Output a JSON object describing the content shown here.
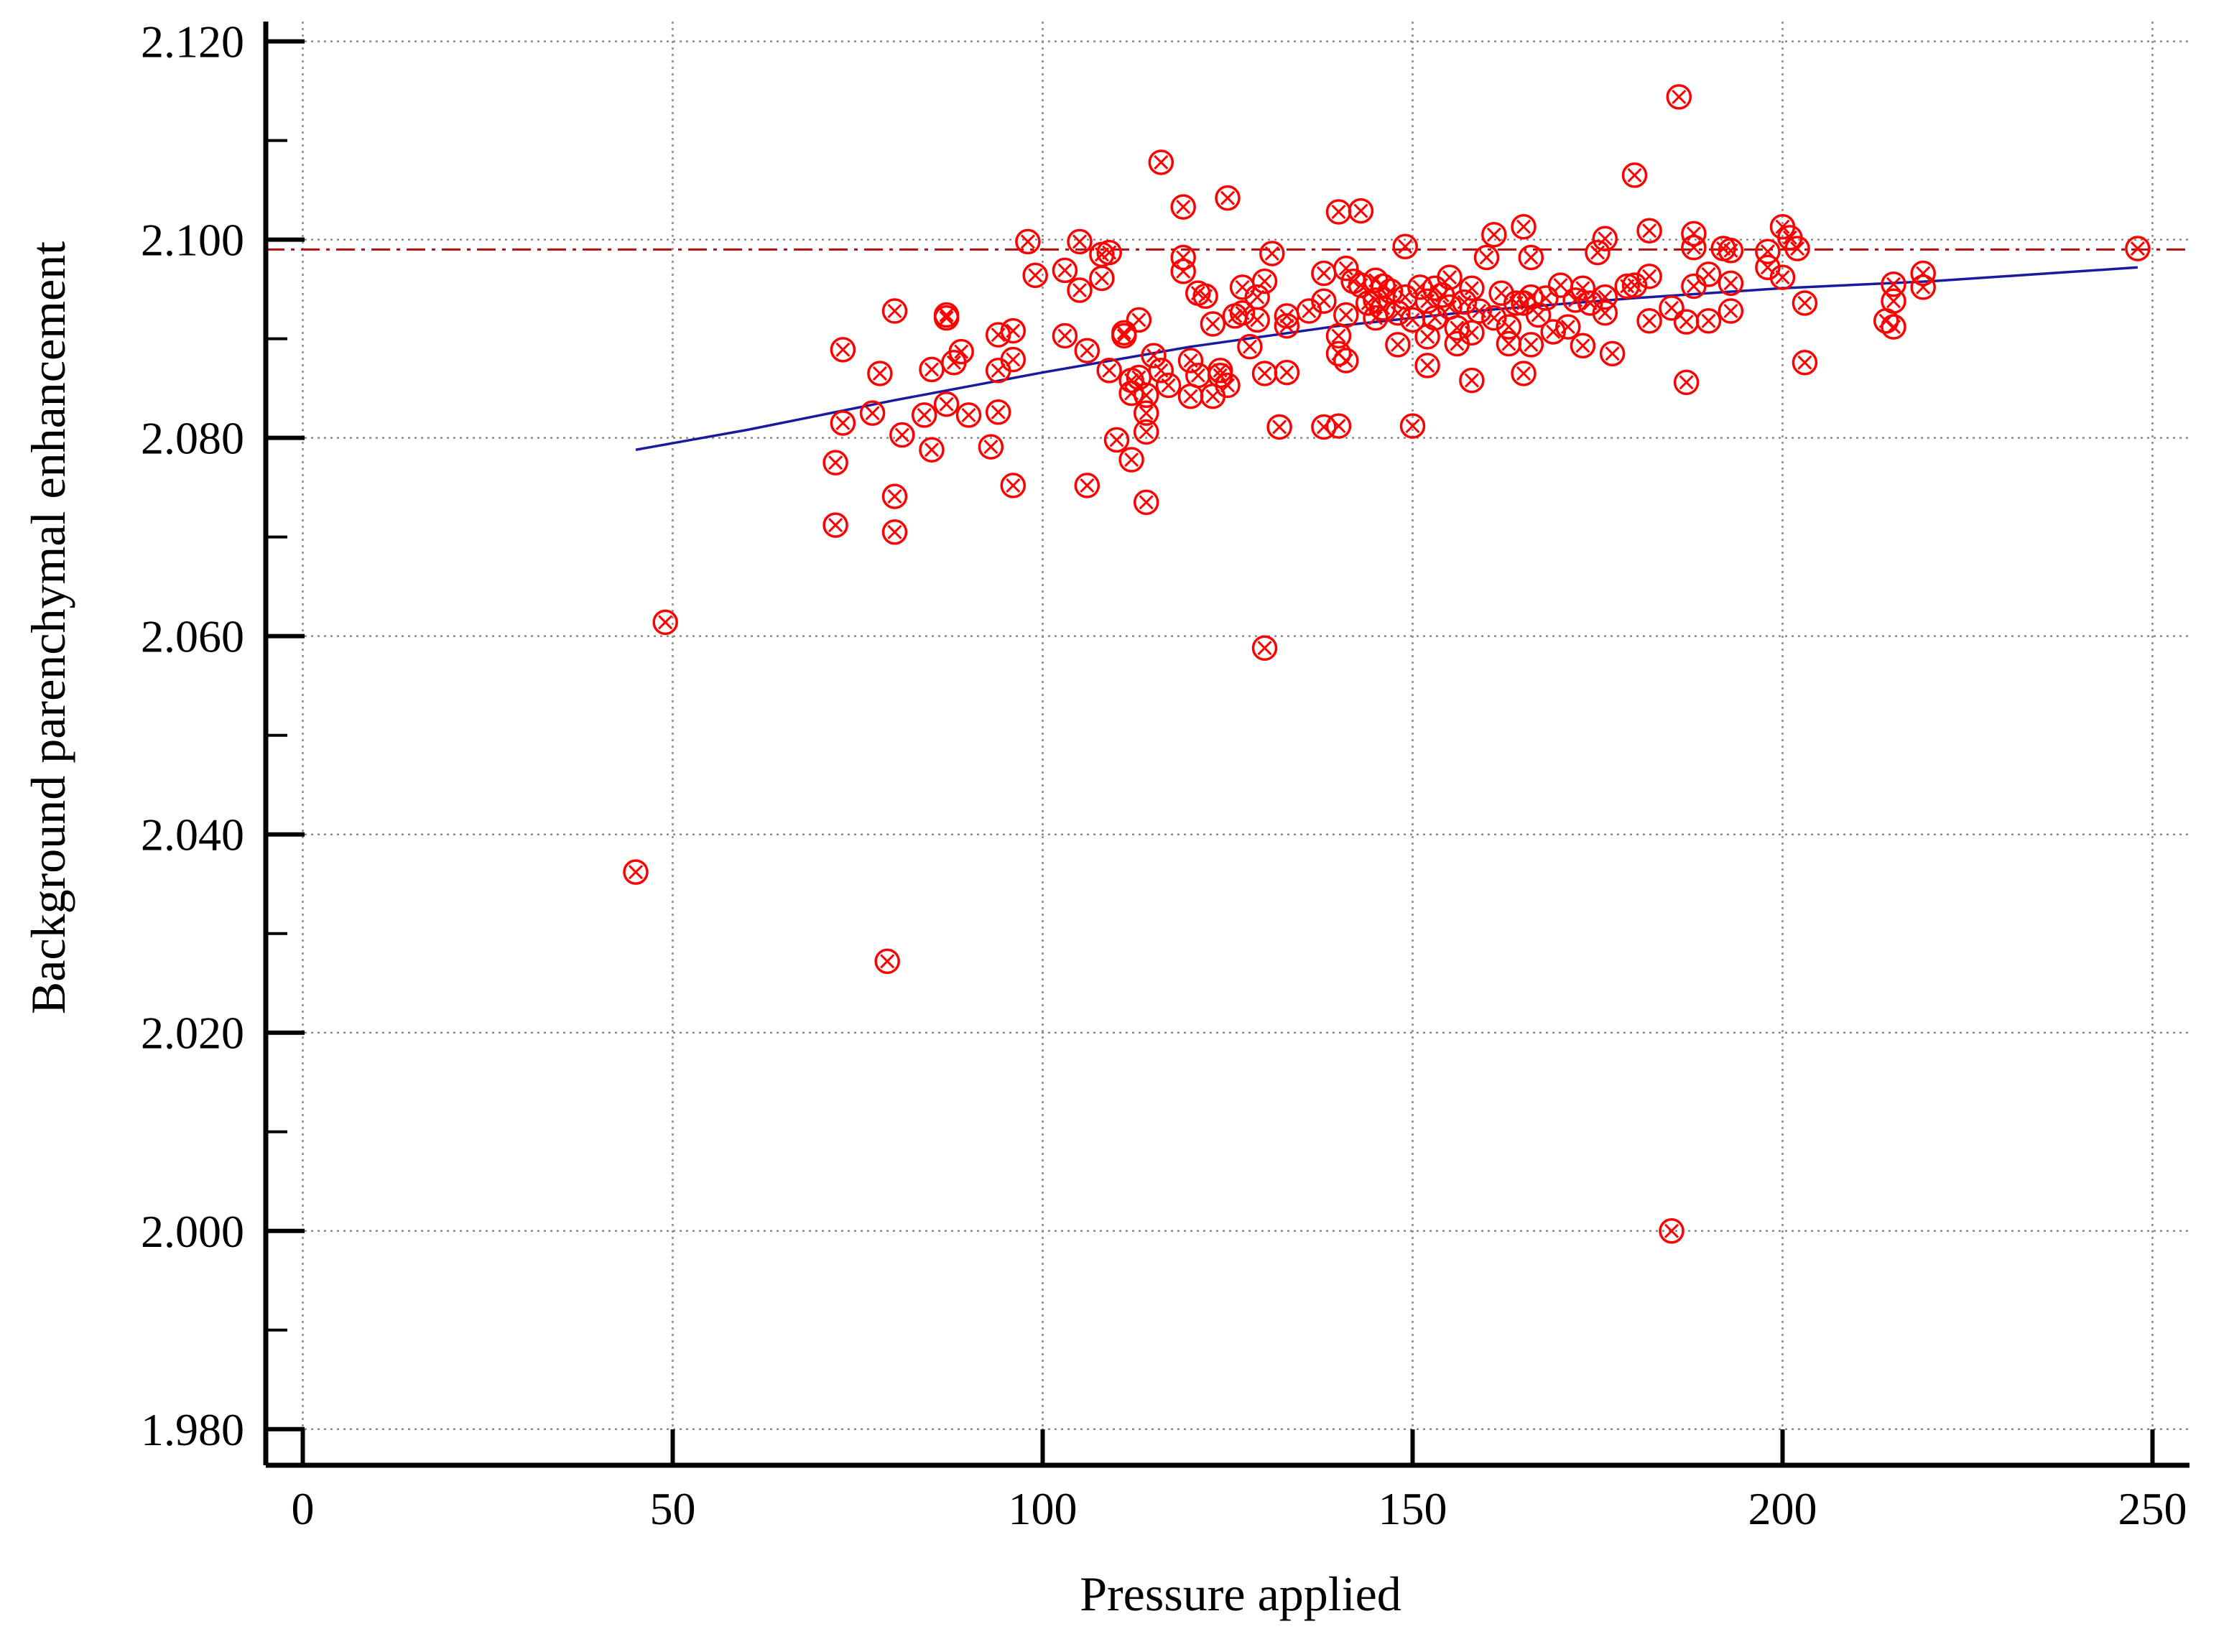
{
  "chart_data": {
    "type": "scatter",
    "title": "",
    "xlabel": "Pressure applied",
    "ylabel": "Background parenchymal enhancement",
    "xlim": [
      -5,
      255
    ],
    "ylim": [
      1.976,
      2.122
    ],
    "x_ticks": [
      {
        "value": 0,
        "label": "0"
      },
      {
        "value": 50,
        "label": "50"
      },
      {
        "value": 100,
        "label": "100"
      },
      {
        "value": 150,
        "label": "150"
      },
      {
        "value": 200,
        "label": "200"
      },
      {
        "value": 250,
        "label": "250"
      }
    ],
    "y_ticks": [
      {
        "value": 1.98,
        "label": "1.980"
      },
      {
        "value": 2.0,
        "label": "2.000"
      },
      {
        "value": 2.02,
        "label": "2.020"
      },
      {
        "value": 2.04,
        "label": "2.040"
      },
      {
        "value": 2.06,
        "label": "2.060"
      },
      {
        "value": 2.08,
        "label": "2.080"
      },
      {
        "value": 2.1,
        "label": "2.100"
      },
      {
        "value": 2.12,
        "label": "2.120"
      }
    ],
    "y_minor_ticks": [
      1.99,
      2.01,
      2.03,
      2.05,
      2.07,
      2.09,
      2.11
    ],
    "grid": true,
    "marker_color": "#ff0000",
    "trend_color": "#1a1aa0",
    "reference_color": "#b01010",
    "reference_line": {
      "y": 2.099,
      "style": "dash-dot"
    },
    "trend_line": {
      "x": [
        45,
        60,
        80,
        100,
        120,
        140,
        160,
        180,
        200,
        220,
        248
      ],
      "y": [
        2.0788,
        2.0808,
        2.0838,
        2.0866,
        2.0892,
        2.0913,
        2.0929,
        2.0941,
        2.0951,
        2.0958,
        2.0972
      ]
    },
    "points": [
      [
        45,
        2.0362
      ],
      [
        49,
        2.0614
      ],
      [
        72,
        2.0712
      ],
      [
        72,
        2.0775
      ],
      [
        73,
        2.0889
      ],
      [
        73,
        2.0815
      ],
      [
        77,
        2.0825
      ],
      [
        78,
        2.0865
      ],
      [
        79,
        2.0272
      ],
      [
        80,
        2.0705
      ],
      [
        80,
        2.0741
      ],
      [
        80,
        2.0928
      ],
      [
        81,
        2.0803
      ],
      [
        84,
        2.0823
      ],
      [
        85,
        2.0788
      ],
      [
        85,
        2.0869
      ],
      [
        87,
        2.0924
      ],
      [
        87,
        2.0921
      ],
      [
        87,
        2.0834
      ],
      [
        88,
        2.0876
      ],
      [
        89,
        2.0887
      ],
      [
        90,
        2.0823
      ],
      [
        93,
        2.0791
      ],
      [
        94,
        2.0904
      ],
      [
        94,
        2.0868
      ],
      [
        94,
        2.0826
      ],
      [
        96,
        2.0752
      ],
      [
        96,
        2.0879
      ],
      [
        96,
        2.0908
      ],
      [
        98,
        2.0998
      ],
      [
        99,
        2.0964
      ],
      [
        103,
        2.0903
      ],
      [
        103,
        2.0969
      ],
      [
        105,
        2.0998
      ],
      [
        105,
        2.0949
      ],
      [
        106,
        2.0752
      ],
      [
        106,
        2.0888
      ],
      [
        108,
        2.0985
      ],
      [
        108,
        2.0961
      ],
      [
        109,
        2.0987
      ],
      [
        109,
        2.0868
      ],
      [
        110,
        2.0798
      ],
      [
        111,
        2.0903
      ],
      [
        111,
        2.0906
      ],
      [
        112,
        2.0858
      ],
      [
        112,
        2.0845
      ],
      [
        112,
        2.0778
      ],
      [
        113,
        2.0919
      ],
      [
        113,
        2.0861
      ],
      [
        114,
        2.0843
      ],
      [
        114,
        2.0825
      ],
      [
        114,
        2.0806
      ],
      [
        114,
        2.0735
      ],
      [
        115,
        2.0883
      ],
      [
        116,
        2.1078
      ],
      [
        116,
        2.0868
      ],
      [
        117,
        2.0853
      ],
      [
        119,
        2.1033
      ],
      [
        119,
        2.0982
      ],
      [
        119,
        2.0968
      ],
      [
        120,
        2.0878
      ],
      [
        120,
        2.0842
      ],
      [
        121,
        2.0946
      ],
      [
        121,
        2.0863
      ],
      [
        122,
        2.0943
      ],
      [
        123,
        2.0915
      ],
      [
        123,
        2.0842
      ],
      [
        124,
        2.0868
      ],
      [
        124,
        2.0863
      ],
      [
        125,
        2.1042
      ],
      [
        125,
        2.0853
      ],
      [
        126,
        2.0923
      ],
      [
        127,
        2.0952
      ],
      [
        127,
        2.0926
      ],
      [
        128,
        2.0892
      ],
      [
        129,
        2.0942
      ],
      [
        129,
        2.0919
      ],
      [
        130,
        2.0588
      ],
      [
        130,
        2.0865
      ],
      [
        130,
        2.0958
      ],
      [
        131,
        2.0986
      ],
      [
        132,
        2.0811
      ],
      [
        133,
        2.0923
      ],
      [
        133,
        2.0866
      ],
      [
        133,
        2.0913
      ],
      [
        136,
        2.0928
      ],
      [
        138,
        2.0966
      ],
      [
        138,
        2.0811
      ],
      [
        138,
        2.0938
      ],
      [
        140,
        2.1028
      ],
      [
        140,
        2.0903
      ],
      [
        140,
        2.0885
      ],
      [
        140,
        2.0812
      ],
      [
        141,
        2.0971
      ],
      [
        141,
        2.0924
      ],
      [
        141,
        2.0878
      ],
      [
        142,
        2.0958
      ],
      [
        143,
        2.1029
      ],
      [
        143,
        2.0954
      ],
      [
        144,
        2.0936
      ],
      [
        145,
        2.0959
      ],
      [
        145,
        2.0939
      ],
      [
        145,
        2.0921
      ],
      [
        146,
        2.0953
      ],
      [
        146,
        2.0931
      ],
      [
        147,
        2.0948
      ],
      [
        148,
        2.0926
      ],
      [
        148,
        2.0894
      ],
      [
        149,
        2.0993
      ],
      [
        149,
        2.0942
      ],
      [
        150,
        2.0919
      ],
      [
        150,
        2.0812
      ],
      [
        151,
        2.0952
      ],
      [
        152,
        2.0938
      ],
      [
        152,
        2.0902
      ],
      [
        152,
        2.0873
      ],
      [
        153,
        2.0951
      ],
      [
        153,
        2.0921
      ],
      [
        154,
        2.0944
      ],
      [
        155,
        2.0962
      ],
      [
        155,
        2.0932
      ],
      [
        156,
        2.0911
      ],
      [
        156,
        2.0895
      ],
      [
        157,
        2.0937
      ],
      [
        158,
        2.0951
      ],
      [
        158,
        2.0858
      ],
      [
        158,
        2.0906
      ],
      [
        159,
        2.0928
      ],
      [
        160,
        2.0982
      ],
      [
        161,
        2.1005
      ],
      [
        161,
        2.0921
      ],
      [
        162,
        2.0946
      ],
      [
        163,
        2.0912
      ],
      [
        163,
        2.0895
      ],
      [
        164,
        2.0936
      ],
      [
        165,
        2.1013
      ],
      [
        165,
        2.0936
      ],
      [
        165,
        2.0865
      ],
      [
        166,
        2.0982
      ],
      [
        166,
        2.0942
      ],
      [
        166,
        2.0894
      ],
      [
        167,
        2.0924
      ],
      [
        168,
        2.0941
      ],
      [
        169,
        2.0907
      ],
      [
        170,
        2.0954
      ],
      [
        171,
        2.0912
      ],
      [
        172,
        2.0939
      ],
      [
        173,
        2.0951
      ],
      [
        173,
        2.0893
      ],
      [
        174,
        2.0936
      ],
      [
        175,
        2.0987
      ],
      [
        176,
        2.1001
      ],
      [
        176,
        2.0926
      ],
      [
        176,
        2.0942
      ],
      [
        177,
        2.0885
      ],
      [
        179,
        2.0953
      ],
      [
        180,
        2.1065
      ],
      [
        180,
        2.0954
      ],
      [
        182,
        2.1009
      ],
      [
        182,
        2.0963
      ],
      [
        182,
        2.0918
      ],
      [
        185,
        2.0931
      ],
      [
        185,
        2.0
      ],
      [
        186,
        2.1144
      ],
      [
        187,
        2.0856
      ],
      [
        187,
        2.0917
      ],
      [
        188,
        2.1006
      ],
      [
        188,
        2.0992
      ],
      [
        188,
        2.0953
      ],
      [
        190,
        2.0918
      ],
      [
        190,
        2.0965
      ],
      [
        192,
        2.0991
      ],
      [
        193,
        2.0989
      ],
      [
        193,
        2.0956
      ],
      [
        193,
        2.0928
      ],
      [
        198,
        2.0988
      ],
      [
        198,
        2.0972
      ],
      [
        200,
        2.1013
      ],
      [
        200,
        2.0962
      ],
      [
        201,
        2.1002
      ],
      [
        202,
        2.0991
      ],
      [
        203,
        2.0936
      ],
      [
        203,
        2.0876
      ],
      [
        214,
        2.0918
      ],
      [
        215,
        2.0955
      ],
      [
        215,
        2.0938
      ],
      [
        215,
        2.0912
      ],
      [
        219,
        2.0966
      ],
      [
        219,
        2.0952
      ],
      [
        248,
        2.0991
      ]
    ]
  }
}
